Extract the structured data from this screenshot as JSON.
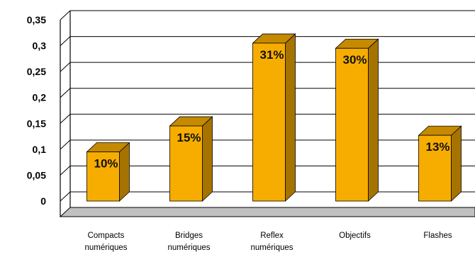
{
  "chart_data": {
    "type": "bar",
    "categories": [
      [
        "Compacts",
        "numériques"
      ],
      [
        "Bridges",
        "numériques"
      ],
      [
        "Reflex",
        "numériques"
      ],
      [
        "Objectifs"
      ],
      [
        "Flashes"
      ]
    ],
    "values": [
      0.095,
      0.145,
      0.305,
      0.295,
      0.127
    ],
    "data_labels": [
      "10%",
      "15%",
      "31%",
      "30%",
      "13%"
    ],
    "y_ticks": [
      "0",
      "0,05",
      "0,1",
      "0,15",
      "0,2",
      "0,25",
      "0,3",
      "0,35"
    ],
    "ylim": [
      0,
      0.35
    ],
    "grid": true,
    "legend": "none",
    "title": "",
    "xlabel": "",
    "ylabel": "",
    "colors": {
      "bar_front": "#f7ad00",
      "bar_side": "#a67300",
      "bar_top": "#c58a00",
      "grid": "#000000",
      "floor": "#c0c0c0"
    }
  }
}
